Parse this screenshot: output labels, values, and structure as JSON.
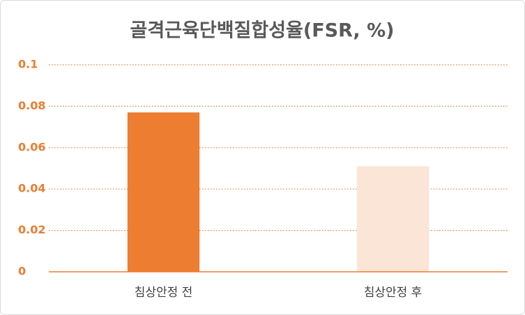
{
  "chart_data": {
    "type": "bar",
    "title": "골격근육단백질합성율(FSR,  %)",
    "categories": [
      "침상안정 전",
      "침상안정 후"
    ],
    "values": [
      0.077,
      0.051
    ],
    "colors": [
      "#ed7d31",
      "#fbe5d6"
    ],
    "ylim": [
      0,
      0.1
    ],
    "yticks": [
      0,
      0.02,
      0.04,
      0.06,
      0.08,
      0.1
    ],
    "grid": true
  }
}
